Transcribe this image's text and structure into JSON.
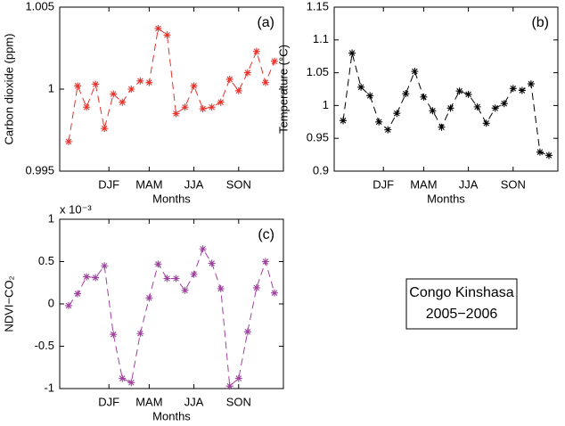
{
  "chart_data": [
    {
      "type": "line",
      "panel_label": "(a)",
      "xlabel": "Months",
      "ylabel": "Carbon dioxide (ppm)",
      "x": [
        1,
        2,
        3,
        4,
        5,
        6,
        7,
        8,
        9,
        10,
        11,
        12,
        13,
        14,
        15,
        16,
        17,
        18,
        19,
        20,
        21,
        22,
        23,
        24
      ],
      "xlim": [
        0,
        25
      ],
      "xticks": [
        {
          "value": 5.5,
          "label": "DJF"
        },
        {
          "value": 10,
          "label": "MAM"
        },
        {
          "value": 15,
          "label": "JJA"
        },
        {
          "value": 20,
          "label": "SON"
        }
      ],
      "ylim": [
        0.995,
        1.005
      ],
      "yticks": [
        0.995,
        1,
        1.005
      ],
      "linestyle": "dashed",
      "marker": "*",
      "color": "#e8322b",
      "values": [
        0.9968,
        1.0002,
        0.9989,
        1.0003,
        0.9976,
        0.9997,
        0.9992,
        1.0,
        1.0005,
        1.0004,
        1.0037,
        1.0033,
        0.9985,
        0.9989,
        1.0002,
        0.9988,
        0.9989,
        0.9992,
        1.0006,
        0.9999,
        1.001,
        1.0023,
        1.0004,
        1.0017
      ]
    },
    {
      "type": "line",
      "panel_label": "(b)",
      "xlabel": "Months",
      "ylabel": "Temperature (°C)",
      "x": [
        1,
        2,
        3,
        4,
        5,
        6,
        7,
        8,
        9,
        10,
        11,
        12,
        13,
        14,
        15,
        16,
        17,
        18,
        19,
        20,
        21,
        22,
        23,
        24
      ],
      "xlim": [
        0,
        25
      ],
      "xticks": [
        {
          "value": 5.5,
          "label": "DJF"
        },
        {
          "value": 10,
          "label": "MAM"
        },
        {
          "value": 15,
          "label": "JJA"
        },
        {
          "value": 20,
          "label": "SON"
        }
      ],
      "ylim": [
        0.9,
        1.15
      ],
      "yticks": [
        0.9,
        0.95,
        1,
        1.05,
        1.1,
        1.15
      ],
      "linestyle": "dashed",
      "marker": "*",
      "color": "#000000",
      "values": [
        0.977,
        1.08,
        1.028,
        1.015,
        0.975,
        0.963,
        0.988,
        1.018,
        1.052,
        1.013,
        0.992,
        0.967,
        0.996,
        1.022,
        1.017,
        0.998,
        0.973,
        0.996,
        1.003,
        1.026,
        1.023,
        1.033,
        0.929,
        0.924
      ]
    },
    {
      "type": "line",
      "panel_label": "(c)",
      "xlabel": "Months",
      "ylabel": "NDVI−CO₂",
      "y_multiplier": "x 10⁻³",
      "x": [
        1,
        2,
        3,
        4,
        5,
        6,
        7,
        8,
        9,
        10,
        11,
        12,
        13,
        14,
        15,
        16,
        17,
        18,
        19,
        20,
        21,
        22,
        23,
        24
      ],
      "xlim": [
        0,
        25
      ],
      "xticks": [
        {
          "value": 5.5,
          "label": "DJF"
        },
        {
          "value": 10,
          "label": "MAM"
        },
        {
          "value": 15,
          "label": "JJA"
        },
        {
          "value": 20,
          "label": "SON"
        }
      ],
      "ylim": [
        -1,
        1
      ],
      "yticks": [
        -1,
        -0.5,
        0,
        0.5,
        1
      ],
      "linestyle": "dashed",
      "marker": "*",
      "color": "#a040a0",
      "values": [
        -0.02,
        0.12,
        0.32,
        0.31,
        0.45,
        -0.36,
        -0.88,
        -0.93,
        -0.35,
        0.07,
        0.47,
        0.3,
        0.3,
        0.16,
        0.35,
        0.65,
        0.48,
        0.18,
        -0.97,
        -0.88,
        -0.33,
        0.19,
        0.5,
        0.13
      ]
    }
  ],
  "textbox": {
    "lines": [
      "Congo Kinshasa",
      "2005−2006"
    ]
  }
}
